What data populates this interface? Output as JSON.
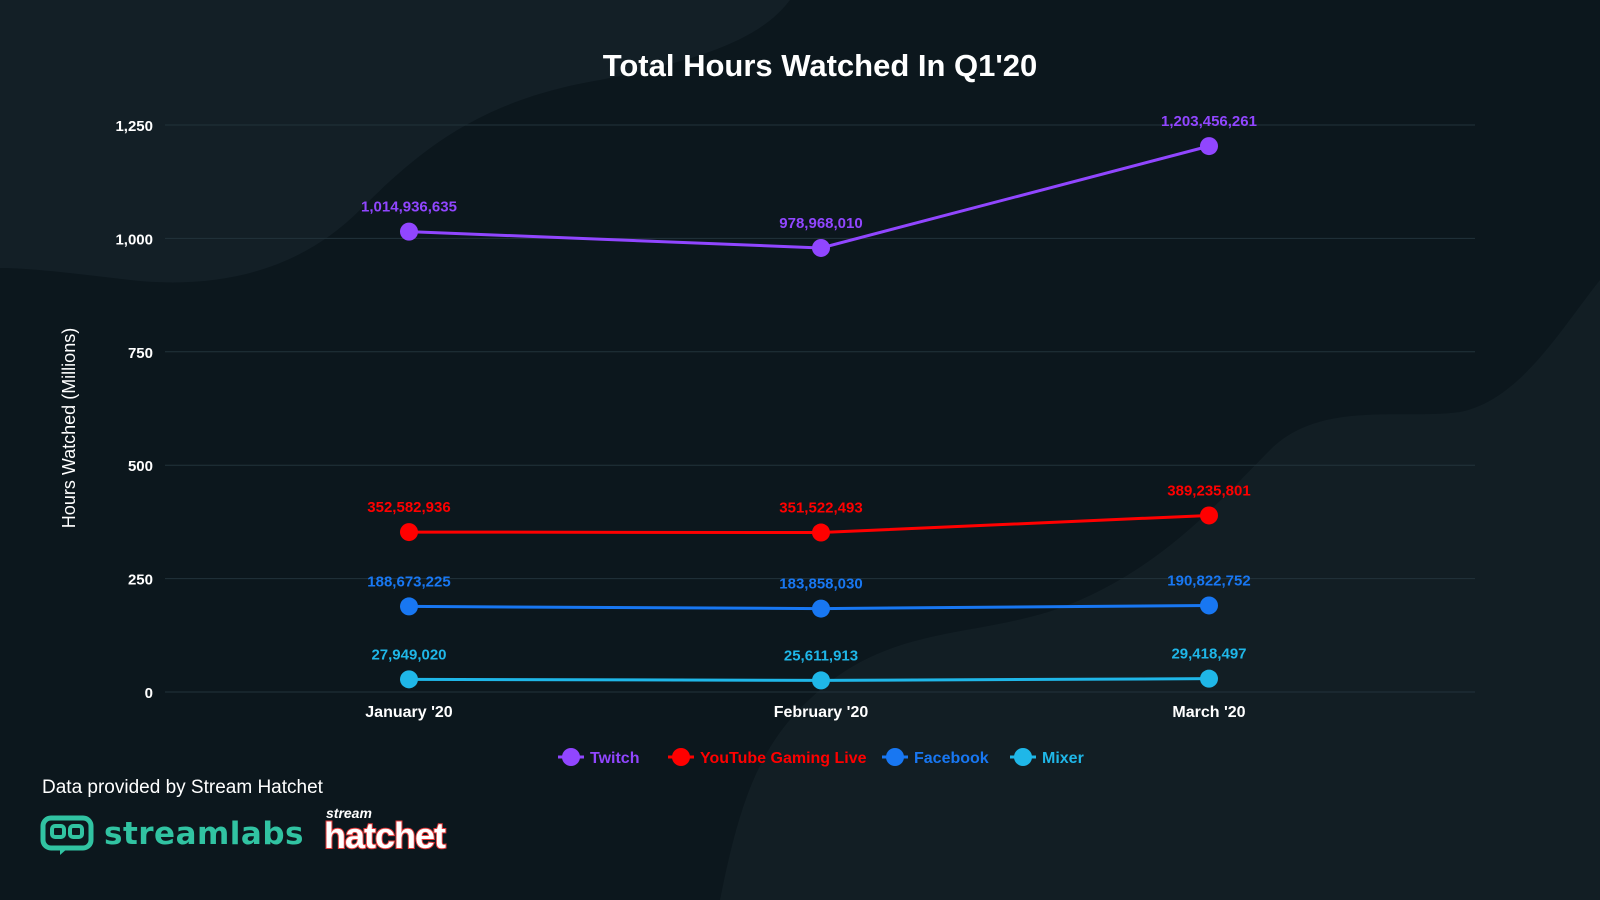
{
  "chart_data": {
    "type": "line",
    "title": "Total Hours Watched In Q1'20",
    "ylabel": "Hours Watched (Millions)",
    "xlabel": "",
    "categories": [
      "January '20",
      "February '20",
      "March '20"
    ],
    "ylim": [
      0,
      1250
    ],
    "yticks": [
      0,
      250,
      500,
      750,
      1000,
      1250
    ],
    "ytick_labels": [
      "0",
      "250",
      "500",
      "750",
      "1,000",
      "1,250"
    ],
    "grid": true,
    "legend_position": "bottom-center",
    "series": [
      {
        "name": "Twitch",
        "color": "#9146ff",
        "values": [
          1014.936635,
          978.96801,
          1203.456261
        ],
        "labels": [
          "1,014,936,635",
          "978,968,010",
          "1,203,456,261"
        ]
      },
      {
        "name": "YouTube Gaming Live",
        "color": "#ff0000",
        "values": [
          352.582936,
          351.522493,
          389.235801
        ],
        "labels": [
          "352,582,936",
          "351,522,493",
          "389,235,801"
        ]
      },
      {
        "name": "Facebook",
        "color": "#1877f2",
        "values": [
          188.673225,
          183.85803,
          190.822752
        ],
        "labels": [
          "188,673,225",
          "183,858,030",
          "190,822,752"
        ]
      },
      {
        "name": "Mixer",
        "color": "#1fb7e8",
        "values": [
          27.94902,
          25.611913,
          29.418497
        ],
        "labels": [
          "27,949,020",
          "25,611,913",
          "29,418,497"
        ]
      }
    ]
  },
  "footer": {
    "credit": "Data provided by Stream Hatchet",
    "logo_streamlabs": "streamlabs",
    "logo_stream_hatchet_top": "stream",
    "logo_stream_hatchet_main": "hatchet"
  },
  "colors": {
    "background": "#0c171d",
    "grid": "#22333b",
    "text": "#ffffff",
    "streamlabs": "#31c3a2",
    "hatchet": "#e63b3b"
  }
}
